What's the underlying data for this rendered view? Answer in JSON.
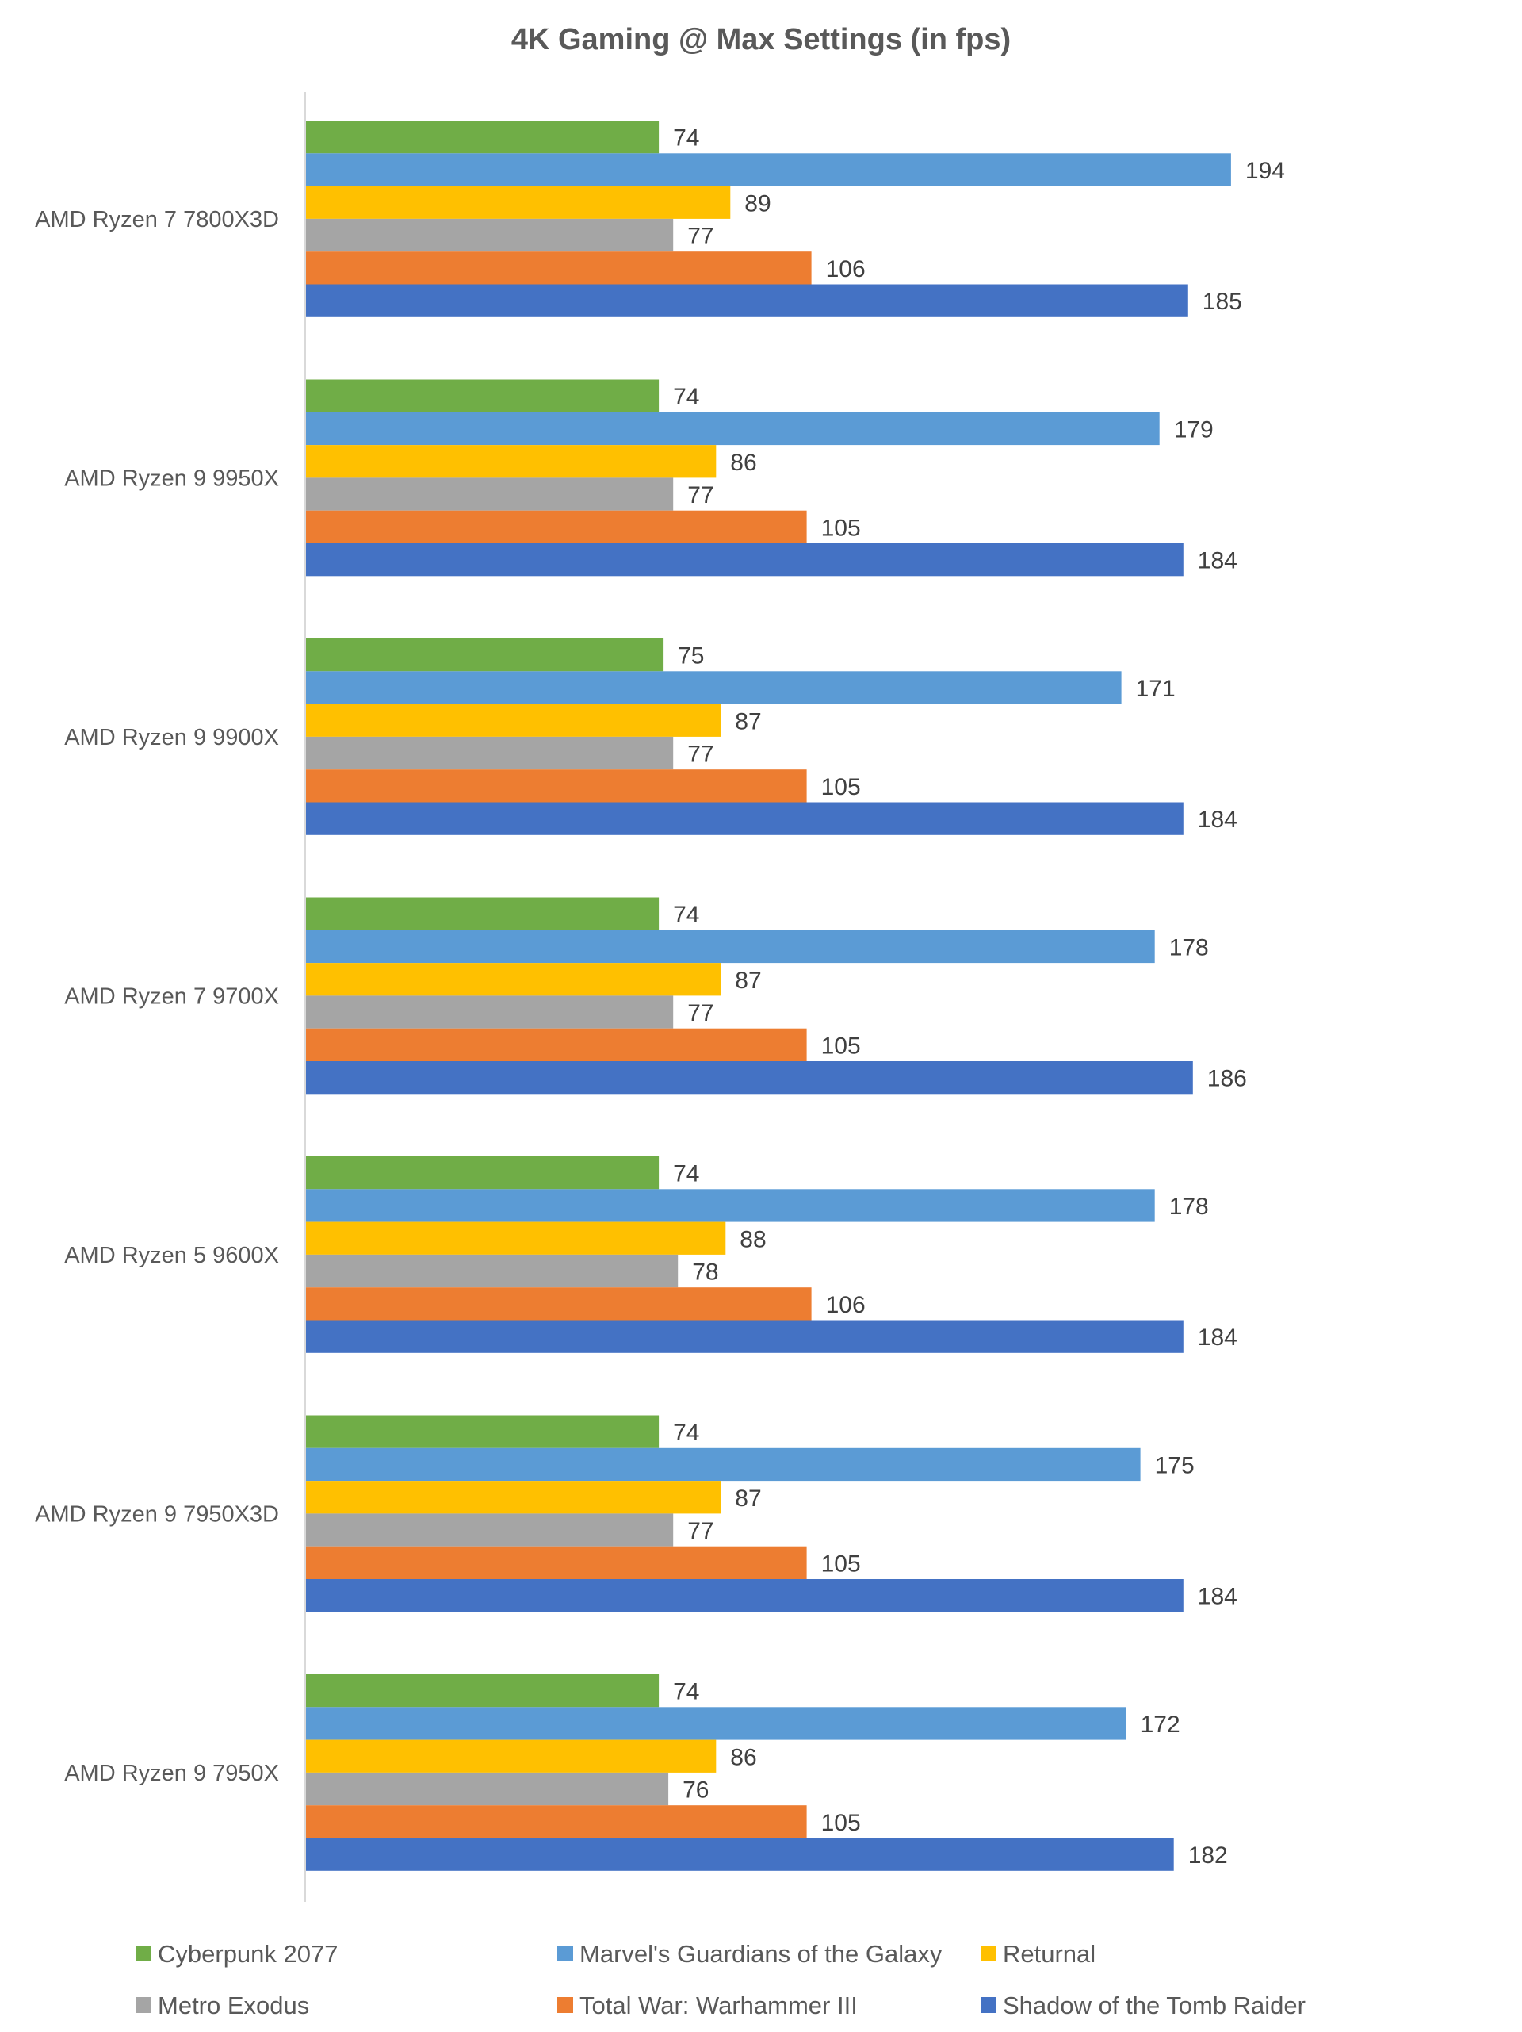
{
  "chart_data": {
    "type": "bar",
    "orientation": "horizontal",
    "title": "4K Gaming @ Max Settings (in fps)",
    "xlabel": "",
    "ylabel": "",
    "xlim": [
      0,
      200
    ],
    "grid": false,
    "legend_position": "bottom",
    "categories": [
      "AMD Ryzen 7 7800X3D",
      "AMD Ryzen 9 9950X",
      "AMD Ryzen 9 9900X",
      "AMD Ryzen 7 9700X",
      "AMD Ryzen 5 9600X",
      "AMD Ryzen 9 7950X3D",
      "AMD Ryzen 9 7950X"
    ],
    "series": [
      {
        "name": "Cyberpunk 2077",
        "color": "#70AD47",
        "values": [
          74,
          74,
          75,
          74,
          74,
          74,
          74
        ]
      },
      {
        "name": "Marvel's Guardians of the Galaxy",
        "color": "#5B9BD5",
        "values": [
          194,
          179,
          171,
          178,
          178,
          175,
          172
        ]
      },
      {
        "name": "Returnal",
        "color": "#FFC000",
        "values": [
          89,
          86,
          87,
          87,
          88,
          87,
          86
        ]
      },
      {
        "name": "Metro Exodus",
        "color": "#A5A5A5",
        "values": [
          77,
          77,
          77,
          77,
          78,
          77,
          76
        ]
      },
      {
        "name": "Total War: Warhammer III",
        "color": "#ED7D31",
        "values": [
          106,
          105,
          105,
          105,
          106,
          105,
          105
        ]
      },
      {
        "name": "Shadow of the Tomb Raider",
        "color": "#4472C4",
        "values": [
          185,
          184,
          184,
          186,
          184,
          184,
          182
        ]
      }
    ]
  }
}
